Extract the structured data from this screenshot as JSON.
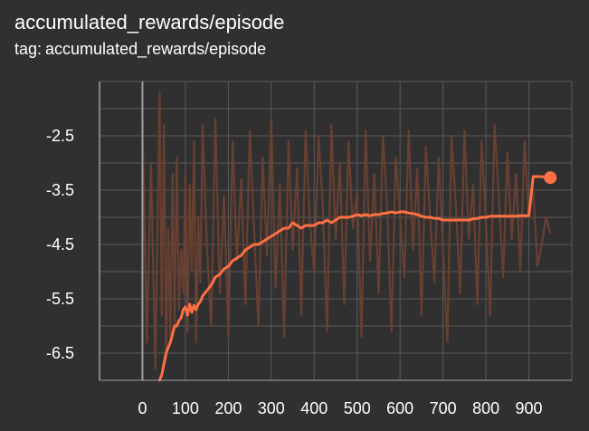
{
  "card": {
    "title": "accumulated_rewards/episode",
    "tag_prefix": "tag:",
    "tag_value": "accumulated_rewards/episode"
  },
  "colors": {
    "background": "#303030",
    "grid": "#5a5a5a",
    "axis": "#9e9e9e",
    "smoothed": "#ff7043",
    "raw": "#6b4032"
  },
  "chart_data": {
    "type": "line",
    "title": "accumulated_rewards/episode",
    "xlabel": "",
    "ylabel": "",
    "xlim": [
      -100,
      1000
    ],
    "ylim": [
      -7.0,
      -1.5
    ],
    "x_ticks": [
      0,
      100,
      200,
      300,
      400,
      500,
      600,
      700,
      800,
      900
    ],
    "y_ticks": [
      -2.5,
      -3.5,
      -4.5,
      -5.5,
      -6.5
    ],
    "y_tick_labels": [
      "-2.5",
      "-3.5",
      "-4.5",
      "-5.5",
      "-6.5"
    ],
    "grid": true,
    "legend": "none",
    "series": [
      {
        "x": [
          0,
          10,
          20,
          30,
          40,
          45,
          50,
          55,
          60,
          65,
          70,
          75,
          80,
          85,
          90,
          95,
          100,
          105,
          110,
          115,
          120,
          125,
          130,
          135,
          140,
          150,
          160,
          170,
          180,
          190,
          200,
          210,
          220,
          230,
          240,
          250,
          260,
          270,
          280,
          290,
          300,
          310,
          320,
          330,
          340,
          350,
          360,
          370,
          380,
          390,
          400,
          410,
          420,
          430,
          440,
          450,
          460,
          470,
          480,
          490,
          500,
          510,
          520,
          530,
          540,
          550,
          560,
          570,
          580,
          590,
          600,
          610,
          620,
          630,
          640,
          650,
          660,
          670,
          680,
          690,
          700,
          710,
          720,
          730,
          740,
          750,
          760,
          770,
          780,
          790,
          800,
          810,
          820,
          830,
          840,
          850,
          860,
          870,
          880,
          890,
          900,
          910,
          920,
          930,
          940,
          950
        ],
        "values": [
          -2.2,
          -6.3,
          -3.0,
          -6.8,
          -1.7,
          -5.8,
          -2.3,
          -6.6,
          -4.2,
          -6.2,
          -3.2,
          -6.0,
          -2.9,
          -5.7,
          -4.6,
          -5.4,
          -3.2,
          -6.1,
          -3.4,
          -5.0,
          -2.6,
          -6.3,
          -4.0,
          -5.2,
          -2.3,
          -4.5,
          -6.0,
          -2.2,
          -5.4,
          -3.6,
          -6.2,
          -2.6,
          -4.8,
          -3.3,
          -5.6,
          -2.4,
          -4.2,
          -6.0,
          -2.9,
          -4.7,
          -2.2,
          -5.3,
          -3.4,
          -6.2,
          -2.6,
          -4.6,
          -3.1,
          -5.8,
          -2.4,
          -4.1,
          -5.0,
          -2.5,
          -3.8,
          -6.1,
          -2.3,
          -4.4,
          -3.0,
          -5.6,
          -2.6,
          -4.2,
          -3.5,
          -6.2,
          -2.4,
          -4.8,
          -3.2,
          -5.4,
          -2.5,
          -3.8,
          -6.1,
          -2.9,
          -4.0,
          -5.1,
          -2.4,
          -4.6,
          -3.1,
          -5.8,
          -2.7,
          -4.0,
          -5.2,
          -2.9,
          -4.6,
          -6.3,
          -2.5,
          -3.8,
          -5.4,
          -2.4,
          -4.4,
          -3.4,
          -5.6,
          -2.6,
          -4.1,
          -5.8,
          -2.3,
          -3.6,
          -5.1,
          -2.8,
          -4.4,
          -3.2,
          -5.0,
          -2.6,
          -4.0,
          -3.5,
          -4.9,
          -4.5,
          -4.0,
          -4.3
        ]
      },
      {
        "x": [
          40,
          45,
          50,
          55,
          60,
          65,
          70,
          75,
          80,
          85,
          90,
          95,
          100,
          105,
          110,
          115,
          120,
          125,
          130,
          135,
          140,
          150,
          160,
          170,
          180,
          190,
          200,
          210,
          220,
          230,
          240,
          250,
          260,
          270,
          280,
          290,
          300,
          310,
          320,
          330,
          340,
          350,
          360,
          370,
          380,
          390,
          400,
          410,
          420,
          430,
          440,
          450,
          460,
          470,
          480,
          490,
          500,
          510,
          520,
          530,
          540,
          550,
          560,
          570,
          580,
          590,
          600,
          610,
          620,
          630,
          640,
          650,
          660,
          670,
          680,
          690,
          700,
          710,
          720,
          730,
          740,
          750,
          760,
          770,
          780,
          790,
          800,
          810,
          820,
          830,
          840,
          850,
          860,
          870,
          880,
          890,
          900,
          910,
          920,
          930,
          940,
          950
        ],
        "values": [
          -7.0,
          -6.9,
          -6.7,
          -6.5,
          -6.4,
          -6.3,
          -6.15,
          -6.0,
          -6.0,
          -5.9,
          -5.85,
          -5.7,
          -5.65,
          -5.8,
          -5.6,
          -5.75,
          -5.62,
          -5.7,
          -5.6,
          -5.55,
          -5.45,
          -5.35,
          -5.25,
          -5.1,
          -5.05,
          -4.95,
          -4.9,
          -4.8,
          -4.75,
          -4.7,
          -4.6,
          -4.55,
          -4.5,
          -4.5,
          -4.45,
          -4.4,
          -4.35,
          -4.3,
          -4.25,
          -4.2,
          -4.2,
          -4.1,
          -4.15,
          -4.2,
          -4.15,
          -4.15,
          -4.15,
          -4.1,
          -4.1,
          -4.05,
          -4.1,
          -4.05,
          -4.0,
          -4.0,
          -4.0,
          -3.98,
          -3.95,
          -3.97,
          -3.95,
          -3.97,
          -3.95,
          -3.95,
          -3.93,
          -3.92,
          -3.9,
          -3.92,
          -3.9,
          -3.9,
          -3.92,
          -3.93,
          -3.95,
          -3.98,
          -4.0,
          -4.0,
          -4.02,
          -4.02,
          -4.05,
          -4.05,
          -4.05,
          -4.05,
          -4.05,
          -4.05,
          -4.05,
          -4.03,
          -4.02,
          -4.0,
          -4.0,
          -3.98,
          -3.98,
          -3.98,
          -3.98,
          -3.98,
          -3.98,
          -3.98,
          -3.97,
          -3.97,
          -3.97,
          -3.25,
          -3.25,
          -3.25,
          -3.27,
          -3.27
        ],
        "highlight_point": {
          "x": 950,
          "y": -3.27
        }
      }
    ]
  }
}
